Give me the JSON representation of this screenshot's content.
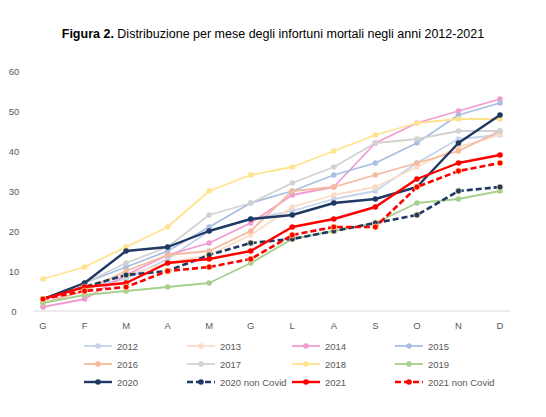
{
  "chart_data": {
    "type": "line",
    "title": "Figura 2. Distribuzione per mese degli infortuni mortali negli anni 2012-2021",
    "categories": [
      "G",
      "F",
      "M",
      "A",
      "M",
      "G",
      "L",
      "A",
      "S",
      "O",
      "N",
      "D"
    ],
    "ylim": [
      0,
      60
    ],
    "yticks": [
      0,
      10,
      20,
      30,
      40,
      50,
      60
    ],
    "grid": false,
    "legend": "bottom",
    "marker": "circle",
    "series": [
      {
        "name": "2012",
        "color": "#c5d3ec",
        "line_style": "solid",
        "values": [
          3,
          6,
          8,
          13,
          20,
          23,
          25,
          28,
          30,
          37,
          43,
          44
        ]
      },
      {
        "name": "2013",
        "color": "#fbdcc7",
        "line_style": "solid",
        "values": [
          3,
          6,
          9,
          12,
          14,
          19,
          26,
          29,
          31,
          36,
          41,
          44
        ]
      },
      {
        "name": "2014",
        "color": "#f29bd2",
        "line_style": "solid",
        "values": [
          1,
          3,
          9,
          14,
          17,
          22,
          29,
          31,
          42,
          47,
          50,
          53
        ]
      },
      {
        "name": "2015",
        "color": "#a9bfe3",
        "line_style": "solid",
        "values": [
          3,
          7,
          11,
          15,
          21,
          27,
          30,
          34,
          37,
          42,
          49,
          52
        ]
      },
      {
        "name": "2016",
        "color": "#f5b99b",
        "line_style": "solid",
        "values": [
          2,
          5,
          10,
          14,
          15,
          20,
          30,
          31,
          34,
          37,
          40,
          45
        ]
      },
      {
        "name": "2017",
        "color": "#d2d2d2",
        "line_style": "solid",
        "values": [
          3,
          7,
          12,
          16,
          24,
          27,
          32,
          36,
          42,
          43,
          45,
          45
        ]
      },
      {
        "name": "2018",
        "color": "#ffe38f",
        "line_style": "solid",
        "values": [
          8,
          11,
          16,
          21,
          30,
          34,
          36,
          40,
          44,
          47,
          48,
          48
        ]
      },
      {
        "name": "2019",
        "color": "#a8d08d",
        "line_style": "solid",
        "values": [
          2,
          4,
          5,
          6,
          7,
          12,
          18,
          20,
          22,
          27,
          28,
          30
        ]
      },
      {
        "name": "2020",
        "color": "#1f3864",
        "line_style": "solid",
        "values": [
          3,
          7,
          15,
          16,
          20,
          23,
          24,
          27,
          28,
          31,
          42,
          49
        ]
      },
      {
        "name": "2020 non Covid",
        "color": "#1f3864",
        "line_style": "dashed",
        "values": [
          3,
          6,
          9,
          10,
          14,
          17,
          18,
          20,
          22,
          24,
          30,
          31
        ]
      },
      {
        "name": "2021",
        "color": "#ff0000",
        "line_style": "solid",
        "values": [
          3,
          6,
          7,
          12,
          13,
          15,
          21,
          23,
          26,
          33,
          37,
          39
        ]
      },
      {
        "name": "2021 non Covid",
        "color": "#ff0000",
        "line_style": "dashed",
        "values": [
          3,
          5,
          6,
          10,
          11,
          13,
          19,
          21,
          21,
          31,
          35,
          37
        ]
      }
    ]
  }
}
